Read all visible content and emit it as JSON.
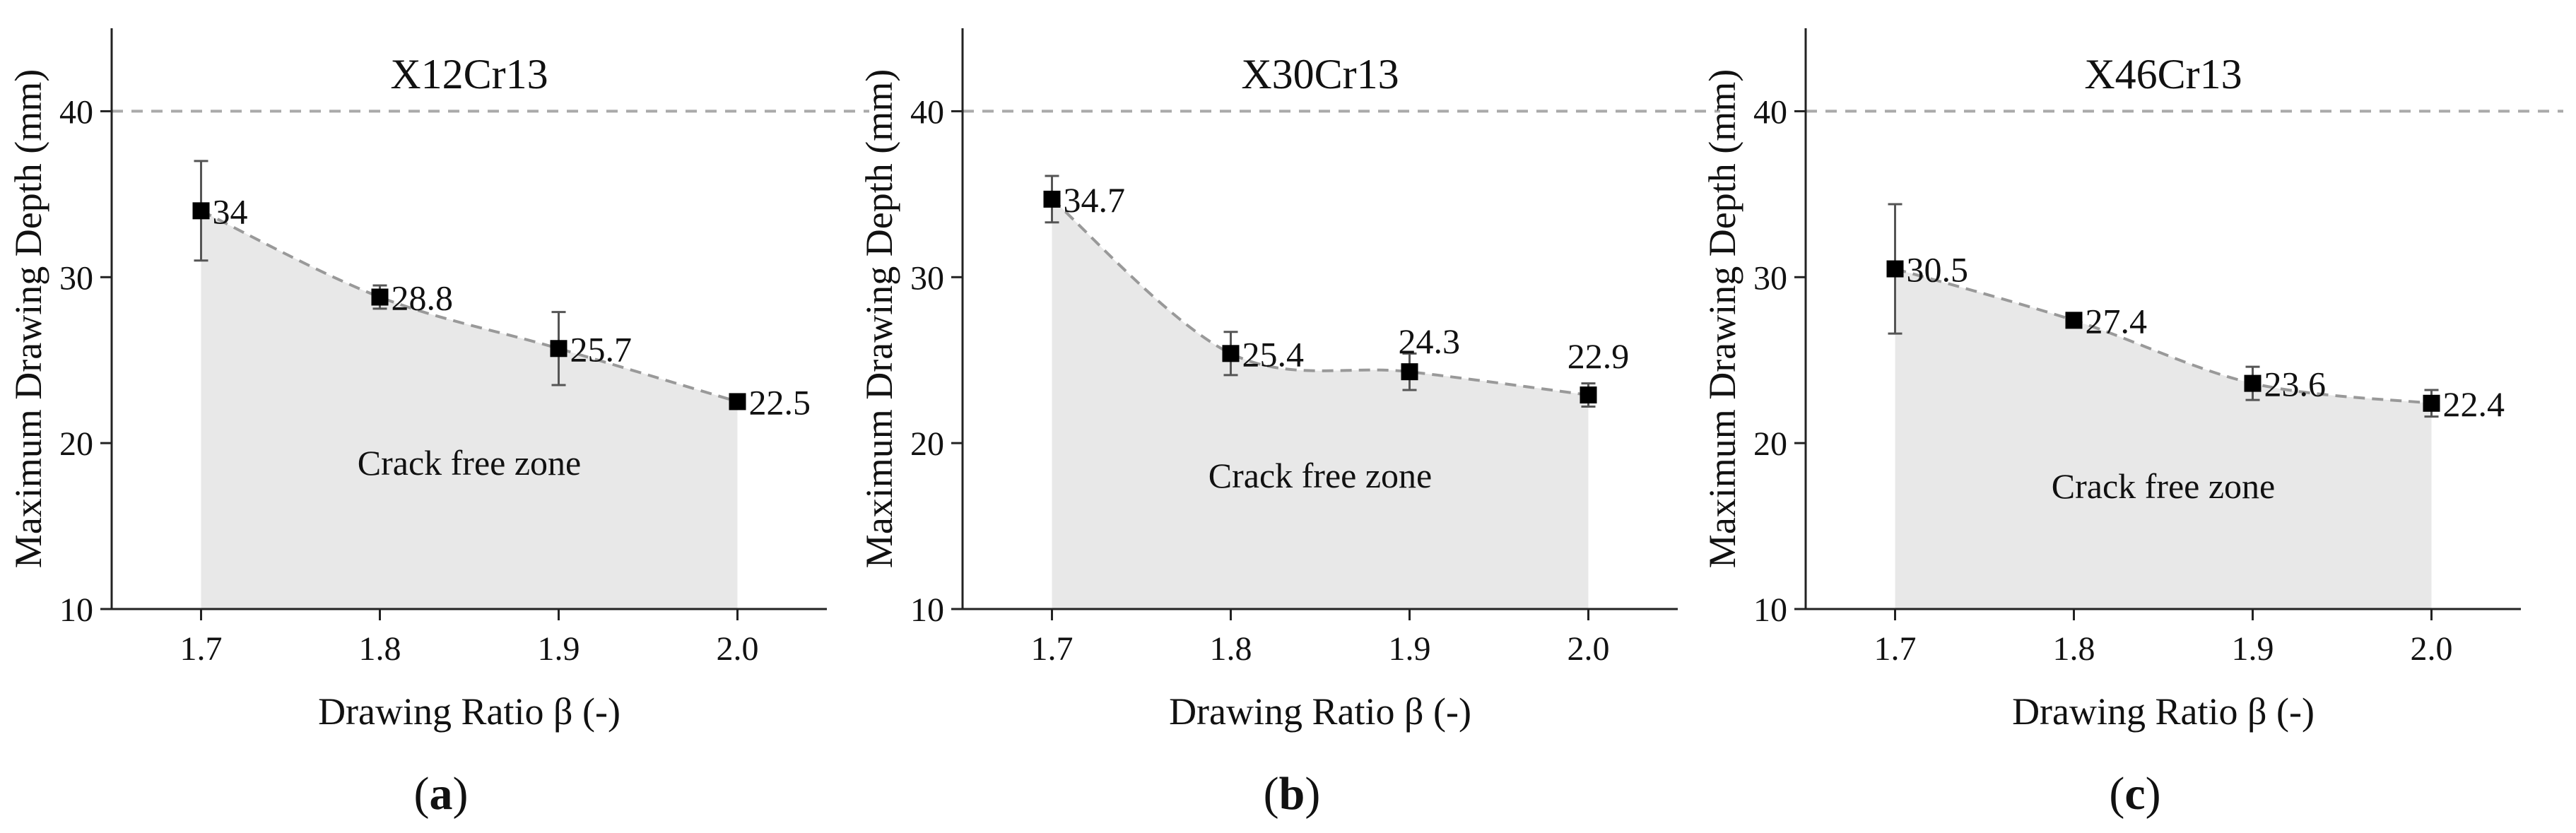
{
  "figure": {
    "reference_color": "#aaaaaa",
    "fill_color": "#e8e8e8",
    "line_color": "#999999",
    "marker_color": "#000000"
  },
  "chart_data": [
    {
      "type": "line",
      "title": "X12Cr13",
      "tag_open": "(",
      "tag_letter": "a",
      "tag_close": ")",
      "xlabel": "Drawing Ratio β (-)",
      "ylabel": "Maximum Drawing Depth (mm)",
      "xlim": [
        1.65,
        2.05
      ],
      "ylim": [
        10,
        45
      ],
      "xticks": [
        1.7,
        1.8,
        1.9,
        2.0
      ],
      "xtick_labels": [
        "1.7",
        "1.8",
        "1.9",
        "2.0"
      ],
      "yticks": [
        10,
        20,
        30,
        40
      ],
      "ytick_labels": [
        "10",
        "20",
        "30",
        "40"
      ],
      "reference_line": 40,
      "zone_label": "Crack free zone",
      "series": [
        {
          "x": [
            1.7,
            1.8,
            1.9,
            2.0
          ],
          "y": [
            34,
            28.8,
            25.7,
            22.5
          ],
          "err": [
            3.0,
            0.7,
            2.2,
            0.4
          ],
          "labels": [
            "34",
            "28.8",
            "25.7",
            "22.5"
          ]
        }
      ]
    },
    {
      "type": "line",
      "title": "X30Cr13",
      "tag_open": "(",
      "tag_letter": "b",
      "tag_close": ")",
      "xlabel": "Drawing Ratio β (-)",
      "ylabel": "Maximum Drawing Depth (mm)",
      "xlim": [
        1.65,
        2.05
      ],
      "ylim": [
        10,
        45
      ],
      "xticks": [
        1.7,
        1.8,
        1.9,
        2.0
      ],
      "xtick_labels": [
        "1.7",
        "1.8",
        "1.9",
        "2.0"
      ],
      "yticks": [
        10,
        20,
        30,
        40
      ],
      "ytick_labels": [
        "10",
        "20",
        "30",
        "40"
      ],
      "reference_line": 40,
      "zone_label": "Crack free zone",
      "series": [
        {
          "x": [
            1.7,
            1.8,
            1.9,
            2.0
          ],
          "y": [
            34.7,
            25.4,
            24.3,
            22.9
          ],
          "err": [
            1.4,
            1.3,
            1.1,
            0.7
          ],
          "labels": [
            "34.7",
            "25.4",
            "24.3",
            "22.9"
          ]
        }
      ]
    },
    {
      "type": "line",
      "title": "X46Cr13",
      "tag_open": "(",
      "tag_letter": "c",
      "tag_close": ")",
      "xlabel": "Drawing Ratio β (-)",
      "ylabel": "Maximum Drawing Depth (mm)",
      "xlim": [
        1.65,
        2.05
      ],
      "ylim": [
        10,
        45
      ],
      "xticks": [
        1.7,
        1.8,
        1.9,
        2.0
      ],
      "xtick_labels": [
        "1.7",
        "1.8",
        "1.9",
        "2.0"
      ],
      "yticks": [
        10,
        20,
        30,
        40
      ],
      "ytick_labels": [
        "10",
        "20",
        "30",
        "40"
      ],
      "reference_line": 40,
      "zone_label": "Crack free zone",
      "series": [
        {
          "x": [
            1.7,
            1.8,
            1.9,
            2.0
          ],
          "y": [
            30.5,
            27.4,
            23.6,
            22.4
          ],
          "err": [
            3.9,
            0.4,
            1.0,
            0.8
          ],
          "labels": [
            "30.5",
            "27.4",
            "23.6",
            "22.4"
          ]
        }
      ]
    }
  ]
}
